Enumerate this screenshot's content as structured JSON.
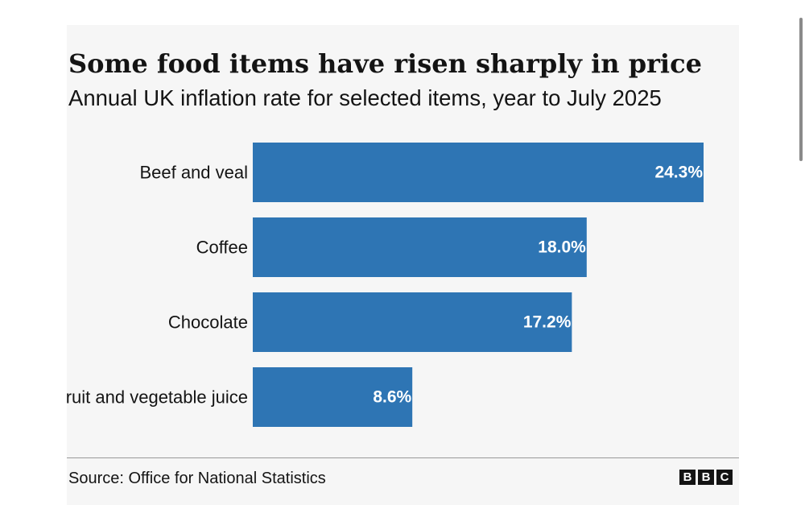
{
  "chart_data": {
    "type": "bar",
    "orientation": "horizontal",
    "title": "Some food items have risen sharply in price",
    "subtitle": "Annual UK inflation rate for selected items, year to July 2025",
    "categories": [
      "Beef and veal",
      "Coffee",
      "Chocolate",
      "Fruit and vegetable juice"
    ],
    "values": [
      24.3,
      18.0,
      17.2,
      8.6
    ],
    "value_labels": [
      "24.3%",
      "18.0%",
      "17.2%",
      "8.6%"
    ],
    "xlim": [
      0,
      24.3
    ],
    "grid": false,
    "legend": "none",
    "bar_color": "#2e75b4",
    "source": "Source: Office for National Statistics"
  },
  "branding": {
    "logo_letters": [
      "B",
      "B",
      "C"
    ]
  }
}
